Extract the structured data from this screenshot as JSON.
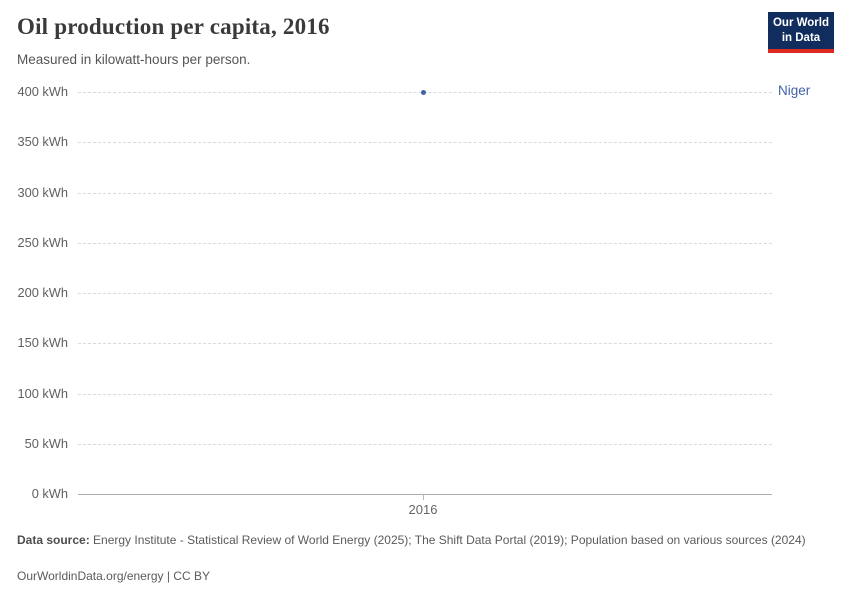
{
  "header": {
    "title": "Oil production per capita, 2016",
    "subtitle": "Measured in kilowatt-hours per person.",
    "logo": {
      "line1": "Our World",
      "line2": "in Data",
      "bg_color": "#102d5e",
      "accent_color": "#dc2a20"
    }
  },
  "chart_data": {
    "type": "scatter",
    "title": "Oil production per capita, 2016",
    "unit": "kilowatt-hours per person",
    "x": [
      2016
    ],
    "xticks": [
      "2016"
    ],
    "series": [
      {
        "name": "Niger",
        "values": [
          400
        ],
        "color": "#4262a8"
      }
    ],
    "ylim": [
      0,
      400
    ],
    "yticks": [
      0,
      50,
      100,
      150,
      200,
      250,
      300,
      350,
      400
    ],
    "ytick_format": "{v} kWh",
    "grid": "horizontal-dashed",
    "legend_position": "right-of-point"
  },
  "footer": {
    "data_source_label": "Data source:",
    "data_source_text": " Energy Institute - Statistical Review of World Energy (2025); The Shift Data Portal (2019); Population based on various sources (2024)",
    "license_text": "OurWorldinData.org/energy | CC BY"
  }
}
